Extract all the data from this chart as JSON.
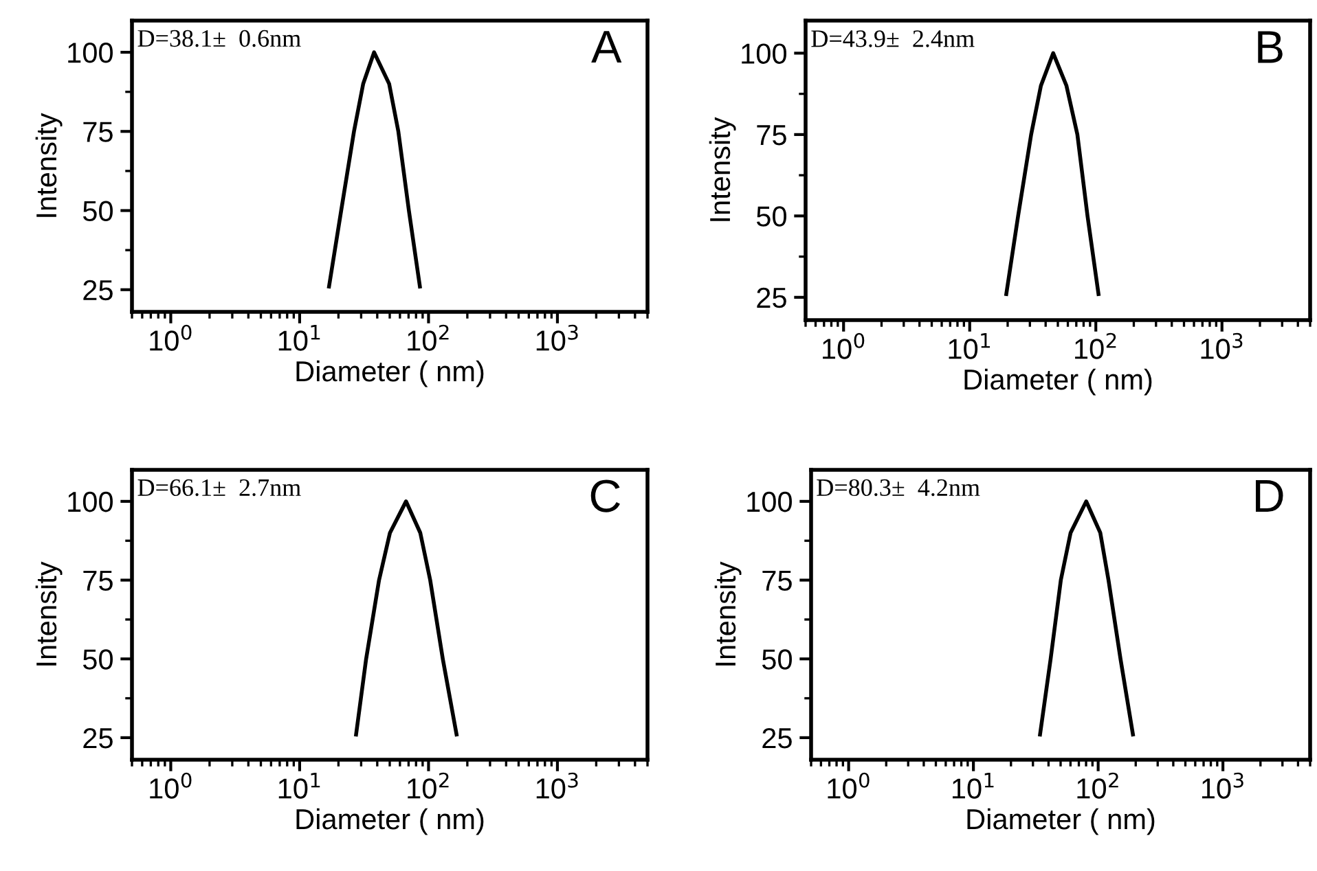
{
  "chart_data": [
    {
      "type": "line",
      "xlabel": "Diameter ( nm)",
      "ylabel": "Intensity",
      "log": "x",
      "xlim": [
        0.5,
        5000
      ],
      "ylim": [
        18,
        110
      ],
      "xticks": [
        {
          "value": 1,
          "label": "10$^{0}$"
        },
        {
          "value": 10,
          "label": "10$^{1}$"
        },
        {
          "value": 100,
          "label": "10$^{2}$"
        },
        {
          "value": 1000,
          "label": "10$^{3}$"
        }
      ],
      "yticks": [
        25,
        50,
        75,
        100
      ],
      "annotations": [
        "D=38.1±  0.6nm",
        "A"
      ],
      "series": [
        {
          "color": "#000000",
          "x": [
            16.9,
            21.0,
            26.4,
            31.1,
            37.8,
            49.5,
            58.3,
            70.4,
            85.7
          ],
          "values": [
            26,
            50,
            75,
            90,
            100,
            90,
            75,
            50,
            26
          ]
        }
      ]
    },
    {
      "type": "line",
      "xlabel": "Diameter ( nm)",
      "ylabel": "Intensity",
      "log": "x",
      "xlim": [
        0.5,
        5000
      ],
      "ylim": [
        18,
        110
      ],
      "xticks": [
        {
          "value": 1,
          "label": "10$^{0}$"
        },
        {
          "value": 10,
          "label": "10$^{1}$"
        },
        {
          "value": 100,
          "label": "10$^{2}$"
        },
        {
          "value": 1000,
          "label": "10$^{3}$"
        }
      ],
      "yticks": [
        25,
        50,
        75,
        100
      ],
      "annotations": [
        "D=43.9±  2.4nm",
        "B"
      ],
      "series": [
        {
          "color": "#000000",
          "x": [
            19.5,
            24.2,
            30.7,
            36.7,
            45.9,
            58.5,
            71.4,
            85.9,
            105
          ],
          "values": [
            26,
            50,
            75,
            90,
            100,
            90,
            75,
            50,
            26
          ]
        }
      ]
    },
    {
      "type": "line",
      "xlabel": "Diameter ( nm)",
      "ylabel": "Intensity",
      "log": "x",
      "xlim": [
        0.5,
        5000
      ],
      "ylim": [
        18,
        110
      ],
      "xticks": [
        {
          "value": 1,
          "label": "10$^{0}$"
        },
        {
          "value": 10,
          "label": "10$^{1}$"
        },
        {
          "value": 100,
          "label": "10$^{2}$"
        },
        {
          "value": 1000,
          "label": "10$^{3}$"
        }
      ],
      "yticks": [
        25,
        50,
        75,
        100
      ],
      "annotations": [
        "D=66.1±  2.7nm",
        "C"
      ],
      "series": [
        {
          "color": "#000000",
          "x": [
            27.4,
            32.8,
            41.3,
            50.2,
            66.9,
            86.3,
            103,
            129,
            165
          ],
          "values": [
            26,
            50,
            75,
            90,
            100,
            90,
            75,
            50,
            26
          ]
        }
      ]
    },
    {
      "type": "line",
      "xlabel": "Diameter ( nm)",
      "ylabel": "Intensity",
      "log": "x",
      "xlim": [
        0.5,
        5000
      ],
      "ylim": [
        18,
        110
      ],
      "xticks": [
        {
          "value": 1,
          "label": "10$^{0}$"
        },
        {
          "value": 10,
          "label": "10$^{1}$"
        },
        {
          "value": 100,
          "label": "10$^{2}$"
        },
        {
          "value": 1000,
          "label": "10$^{3}$"
        }
      ],
      "yticks": [
        25,
        50,
        75,
        100
      ],
      "annotations": [
        "D=80.3±  4.2nm",
        "D"
      ],
      "series": [
        {
          "color": "#000000",
          "x": [
            34.2,
            41.6,
            50.2,
            60.1,
            80.2,
            104,
            121,
            151,
            190
          ],
          "values": [
            26,
            50,
            75,
            90,
            100,
            90,
            75,
            50,
            26
          ]
        }
      ]
    }
  ]
}
